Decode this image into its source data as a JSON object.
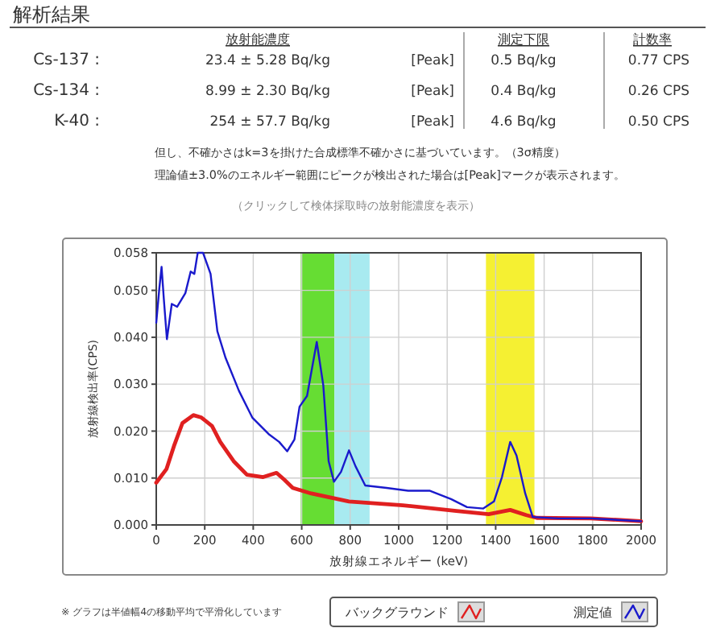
{
  "chart_data": {
    "type": "line",
    "title": "解析結果",
    "xlabel": "放射線エネルギー (keV)",
    "ylabel": "放射線検出率(CPS)",
    "xlim": [
      0,
      2000
    ],
    "xticks": [
      0,
      200,
      400,
      600,
      800,
      1000,
      1200,
      1400,
      1600,
      1800,
      2000
    ],
    "ylim": [
      0,
      0.058
    ],
    "yticks": [
      {
        "value": 0,
        "label": "0.000"
      },
      {
        "value": 0.01,
        "label": "0.010"
      },
      {
        "value": 0.02,
        "label": "0.020"
      },
      {
        "value": 0.03,
        "label": "0.030"
      },
      {
        "value": 0.04,
        "label": "0.040"
      },
      {
        "value": 0.05,
        "label": "0.050"
      },
      {
        "value": 0.058,
        "label": "0.058"
      }
    ],
    "grid": true,
    "legend": "bottom right",
    "bands": [
      {
        "axis": "x",
        "from": 596,
        "to": 735,
        "color": "#66dd33"
      },
      {
        "axis": "x",
        "from": 735,
        "to": 880,
        "color": "#a8eaf0"
      },
      {
        "axis": "x",
        "from": 1360,
        "to": 1560,
        "color": "#f5f032"
      }
    ],
    "series": [
      {
        "name": "バックグラウンド",
        "color": "#e02020",
        "x": [
          0,
          42,
          75,
          108,
          153,
          186,
          230,
          264,
          319,
          374,
          441,
          496,
          529,
          563,
          640,
          795,
          1017,
          1238,
          1371,
          1460,
          1526,
          1570,
          1792,
          2000
        ],
        "values": [
          0.009,
          0.0119,
          0.0171,
          0.0217,
          0.0234,
          0.0229,
          0.0211,
          0.0177,
          0.0136,
          0.0107,
          0.0102,
          0.0111,
          0.0096,
          0.0079,
          0.0067,
          0.005,
          0.0042,
          0.003,
          0.0023,
          0.0032,
          0.0021,
          0.0015,
          0.0014,
          0.0008
        ]
      },
      {
        "name": "測定値",
        "color": "#1a1acc",
        "x": [
          0,
          13,
          22,
          31,
          44,
          64,
          86,
          120,
          142,
          157,
          171,
          193,
          224,
          252,
          286,
          341,
          396,
          463,
          507,
          540,
          570,
          591,
          622,
          662,
          689,
          711,
          733,
          762,
          795,
          822,
          862,
          950,
          1039,
          1127,
          1216,
          1282,
          1349,
          1393,
          1426,
          1460,
          1486,
          1522,
          1553,
          1659,
          1792,
          2000
        ],
        "values": [
          0.0431,
          0.0506,
          0.055,
          0.0483,
          0.0396,
          0.0471,
          0.0465,
          0.0494,
          0.054,
          0.0535,
          0.058,
          0.058,
          0.0535,
          0.0413,
          0.0356,
          0.0286,
          0.0229,
          0.0194,
          0.0177,
          0.0157,
          0.0182,
          0.0252,
          0.0275,
          0.039,
          0.0298,
          0.0136,
          0.0092,
          0.0113,
          0.0159,
          0.0125,
          0.0084,
          0.0079,
          0.0073,
          0.0073,
          0.0055,
          0.0038,
          0.0035,
          0.005,
          0.0102,
          0.0177,
          0.0148,
          0.0067,
          0.0017,
          0.0014,
          0.0014,
          0.0008
        ]
      }
    ],
    "annotations": [
      "放射能濃度",
      "測定下限",
      "計数率",
      "Cs-137 :",
      "23.4 ± 5.28 Bq/kg",
      "[Peak]",
      "0.5 Bq/kg",
      "0.77 CPS",
      "Cs-134 :",
      "8.99 ± 2.30 Bq/kg",
      "[Peak]",
      "0.4 Bq/kg",
      "0.26 CPS",
      "K-40 :",
      "254 ± 57.7 Bq/kg",
      "[Peak]",
      "4.6 Bq/kg",
      "0.50 CPS",
      "但し、不確かさはk=3を掛けた合成標準不確かさに基づいています。（3σ精度）",
      "理論値±3.0%のエネルギー範囲にピークが検出された場合は[Peak]マークが表示されます。",
      "（クリックして検体採取時の放射能濃度を表示）",
      "※ グラフは半値幅4の移動平均で平滑化しています"
    ]
  }
}
